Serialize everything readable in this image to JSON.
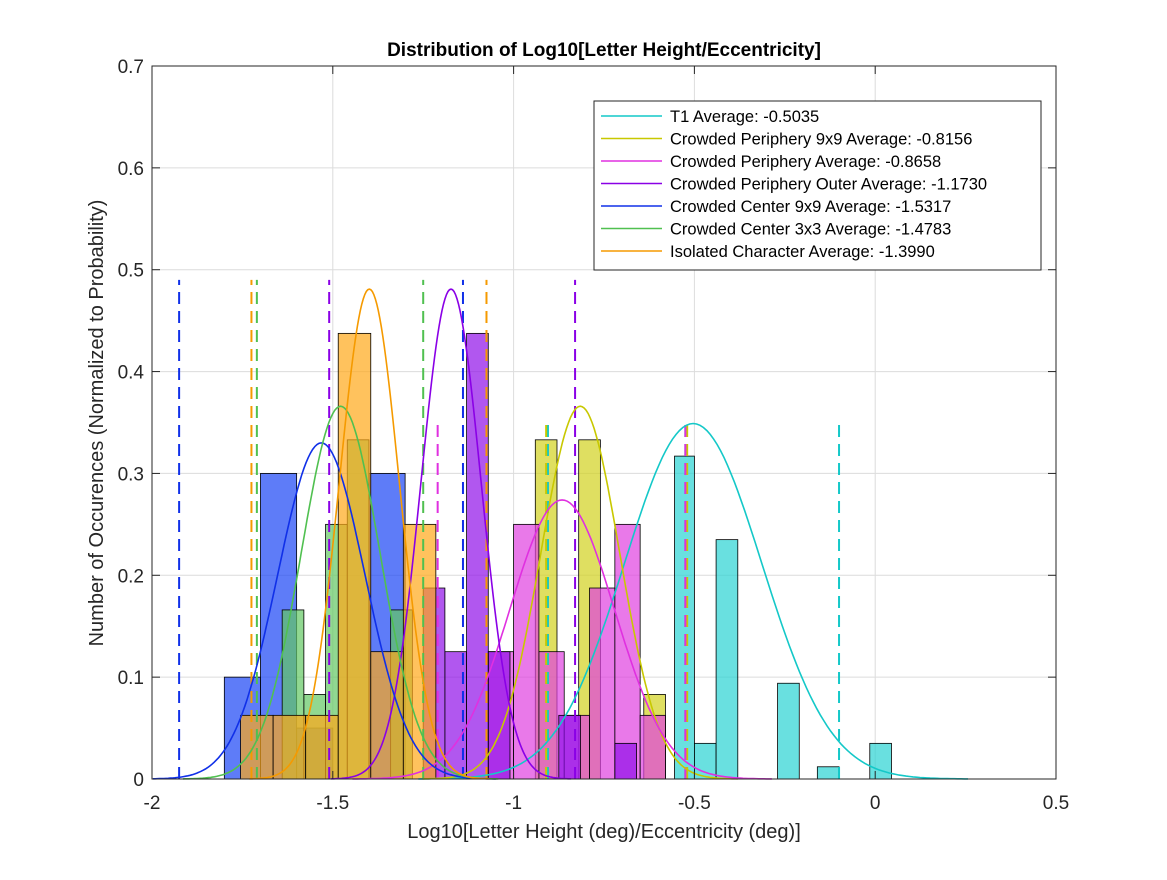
{
  "chart_data": {
    "type": "bar",
    "title": "Distribution of Log10[Letter Height/Eccentricity]",
    "xlabel": "Log10[Letter Height (deg)/Eccentricity (deg)]",
    "ylabel": "Number of Occurences (Normalized to Probability)",
    "xlim": [
      -2,
      0.5
    ],
    "ylim": [
      0,
      0.7
    ],
    "x_ticks": [
      -2,
      -1.5,
      -1,
      -0.5,
      0,
      0.5
    ],
    "x_tick_labels": [
      "-2",
      "-1.5",
      "-1",
      "-0.5",
      "0",
      "0.5"
    ],
    "y_ticks": [
      0,
      0.1,
      0.2,
      0.3,
      0.4,
      0.5,
      0.6,
      0.7
    ],
    "y_tick_labels": [
      "0",
      "0.1",
      "0.2",
      "0.3",
      "0.4",
      "0.5",
      "0.6",
      "0.7"
    ],
    "grid": true,
    "legend_position": "top-right",
    "series": [
      {
        "name": "T1 Average: -0.5035",
        "color": "#14c8c8",
        "fill": "#2ad3d3",
        "mean": -0.5035,
        "sd": 0.19,
        "peak": 0.349,
        "ci_lines": [
          -0.905,
          -0.525,
          -0.1
        ],
        "ci_top": 0.35,
        "bars": [
          {
            "x0": -0.555,
            "x1": -0.5,
            "y": 0.317
          },
          {
            "x0": -0.5,
            "x1": -0.44,
            "y": 0.035
          },
          {
            "x0": -0.44,
            "x1": -0.38,
            "y": 0.235
          },
          {
            "x0": -0.27,
            "x1": -0.21,
            "y": 0.094
          },
          {
            "x0": -0.16,
            "x1": -0.1,
            "y": 0.012
          },
          {
            "x0": -0.015,
            "x1": 0.045,
            "y": 0.035
          }
        ]
      },
      {
        "name": "Crowded Periphery 9x9 Average: -0.8156",
        "color": "#c8c800",
        "fill": "#d2d21e",
        "mean": -0.8156,
        "sd": 0.109,
        "peak": 0.366,
        "ci_lines": [
          -0.91,
          -0.52
        ],
        "ci_top": 0.35,
        "bars": [
          {
            "x0": -0.94,
            "x1": -0.88,
            "y": 0.333
          },
          {
            "x0": -0.82,
            "x1": -0.76,
            "y": 0.333
          },
          {
            "x0": -0.64,
            "x1": -0.58,
            "y": 0.083
          }
        ]
      },
      {
        "name": "Crowded Periphery Average: -0.8658",
        "color": "#e030e0",
        "fill": "#e040e0",
        "mean": -0.8658,
        "sd": 0.145,
        "peak": 0.274,
        "ci_lines": [
          -1.21,
          -0.525
        ],
        "ci_top": 0.35,
        "bars": [
          {
            "x0": -1.07,
            "x1": -1.0,
            "y": 0.125
          },
          {
            "x0": -1.0,
            "x1": -0.93,
            "y": 0.25
          },
          {
            "x0": -0.93,
            "x1": -0.86,
            "y": 0.125
          },
          {
            "x0": -0.86,
            "x1": -0.79,
            "y": 0.0625
          },
          {
            "x0": -0.79,
            "x1": -0.72,
            "y": 0.1875
          },
          {
            "x0": -0.72,
            "x1": -0.65,
            "y": 0.25
          },
          {
            "x0": -0.65,
            "x1": -0.58,
            "y": 0.0625
          }
        ]
      },
      {
        "name": "Crowded Periphery Outer Average: -1.1730",
        "color": "#8a00e6",
        "fill": "#9010e8",
        "mean": -1.173,
        "sd": 0.083,
        "peak": 0.481,
        "ci_lines": [
          -1.51,
          -0.83
        ],
        "ci_top": 0.49,
        "bars": [
          {
            "x0": -1.25,
            "x1": -1.19,
            "y": 0.1875
          },
          {
            "x0": -1.19,
            "x1": -1.13,
            "y": 0.125
          },
          {
            "x0": -1.13,
            "x1": -1.07,
            "y": 0.4375
          },
          {
            "x0": -1.07,
            "x1": -1.01,
            "y": 0.125
          },
          {
            "x0": -0.875,
            "x1": -0.815,
            "y": 0.0625
          },
          {
            "x0": -0.72,
            "x1": -0.66,
            "y": 0.035
          }
        ]
      },
      {
        "name": "Crowded Center 9x9 Average: -1.5317",
        "color": "#1030e8",
        "fill": "#1a44f5",
        "mean": -1.5317,
        "sd": 0.121,
        "peak": 0.33,
        "ci_lines": [
          -1.925,
          -1.14
        ],
        "ci_top": 0.49,
        "bars": [
          {
            "x0": -1.8,
            "x1": -1.7,
            "y": 0.1
          },
          {
            "x0": -1.7,
            "x1": -1.6,
            "y": 0.3
          },
          {
            "x0": -1.6,
            "x1": -1.5,
            "y": 0.05
          },
          {
            "x0": -1.4,
            "x1": -1.3,
            "y": 0.3
          }
        ]
      },
      {
        "name": "Crowded Center 3x3 Average: -1.4783",
        "color": "#50c050",
        "fill": "#62c862",
        "mean": -1.4783,
        "sd": 0.109,
        "peak": 0.366,
        "ci_lines": [
          -1.71,
          -1.25
        ],
        "ci_top": 0.49,
        "bars": [
          {
            "x0": -1.64,
            "x1": -1.58,
            "y": 0.166
          },
          {
            "x0": -1.58,
            "x1": -1.52,
            "y": 0.083
          },
          {
            "x0": -1.52,
            "x1": -1.46,
            "y": 0.25
          },
          {
            "x0": -1.46,
            "x1": -1.4,
            "y": 0.333
          },
          {
            "x0": -1.34,
            "x1": -1.28,
            "y": 0.166
          }
        ]
      },
      {
        "name": "Isolated Character Average: -1.3990",
        "color": "#f59a00",
        "fill": "#ffa818",
        "mean": -1.399,
        "sd": 0.083,
        "peak": 0.481,
        "ci_lines": [
          -1.725,
          -1.075
        ],
        "ci_top": 0.49,
        "bars": [
          {
            "x0": -1.755,
            "x1": -1.665,
            "y": 0.0625
          },
          {
            "x0": -1.665,
            "x1": -1.575,
            "y": 0.0625
          },
          {
            "x0": -1.575,
            "x1": -1.485,
            "y": 0.0625
          },
          {
            "x0": -1.485,
            "x1": -1.395,
            "y": 0.4375
          },
          {
            "x0": -1.395,
            "x1": -1.305,
            "y": 0.125
          },
          {
            "x0": -1.305,
            "x1": -1.215,
            "y": 0.25
          }
        ]
      }
    ]
  }
}
